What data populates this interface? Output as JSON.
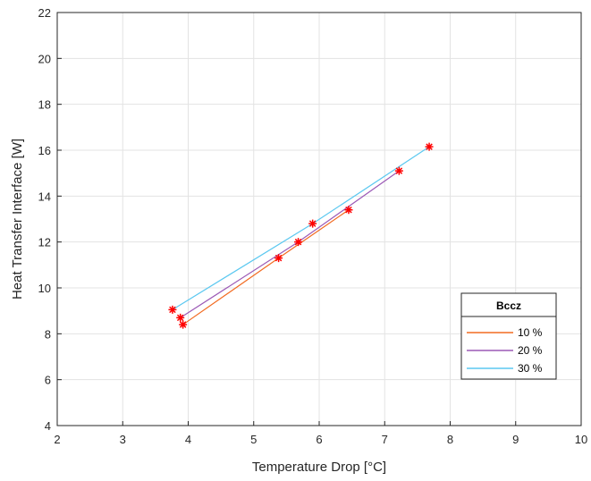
{
  "chart_data": {
    "type": "line",
    "xlabel": "Temperature Drop [°C]",
    "ylabel": "Heat Transfer Interface [W]",
    "xlim": [
      2,
      10
    ],
    "ylim": [
      4,
      22
    ],
    "xticks": [
      "2",
      "3",
      "4",
      "5",
      "6",
      "7",
      "8",
      "9",
      "10"
    ],
    "yticks": [
      "4",
      "6",
      "8",
      "10",
      "12",
      "14",
      "16",
      "18",
      "20",
      "22"
    ],
    "grid": true,
    "marker": "*",
    "marker_color": "#ff0000",
    "legend": {
      "title": "Bccz",
      "placement": "bottom-right"
    },
    "series": [
      {
        "name": "10 %",
        "color": "#f26b21",
        "x": [
          3.92,
          5.38,
          6.45
        ],
        "y": [
          8.4,
          11.3,
          13.4
        ]
      },
      {
        "name": "20 %",
        "color": "#9b59b6",
        "x": [
          3.88,
          5.68,
          7.22
        ],
        "y": [
          8.7,
          12.0,
          15.1
        ]
      },
      {
        "name": "30 %",
        "color": "#5bc8f0",
        "x": [
          3.76,
          5.9,
          7.68
        ],
        "y": [
          9.05,
          12.8,
          16.15
        ]
      }
    ]
  }
}
